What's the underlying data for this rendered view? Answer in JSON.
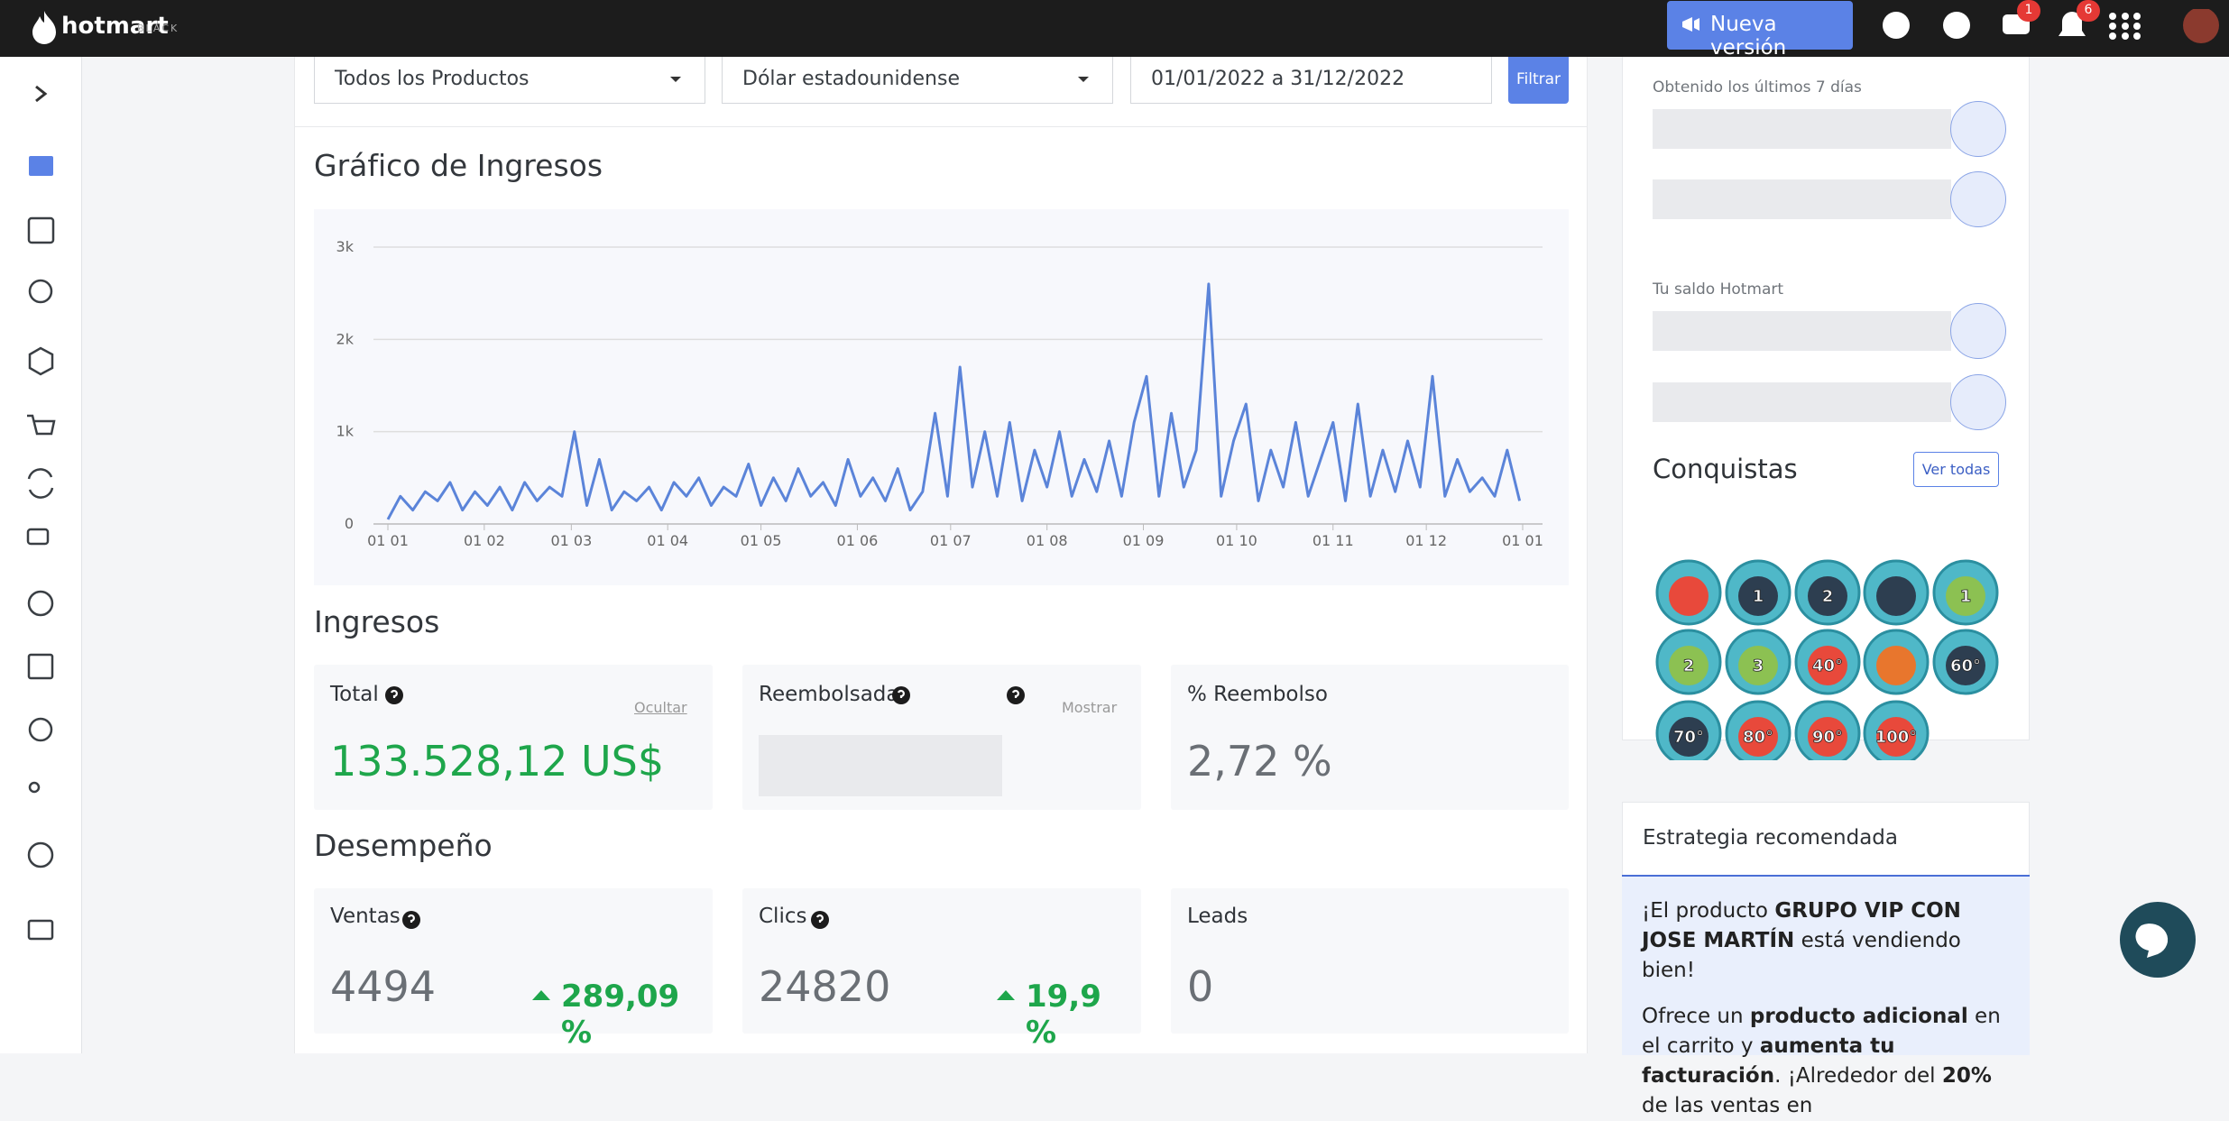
{
  "topbar": {
    "brand": "hotmart",
    "brand_tag": "BLACK",
    "new_version": "Nueva versión",
    "chat_badge": "1",
    "notif_badge": "6"
  },
  "filters": {
    "product": "Todos los Productos",
    "currency": "Dólar estadounidense",
    "dates": "01/01/2022 a 31/12/2022",
    "button": "Filtrar"
  },
  "chart_data": {
    "type": "line",
    "title": "Gráfico de Ingresos",
    "color": "#5b84d9",
    "grid": true,
    "xlim": [
      0,
      365
    ],
    "xticks": [
      {
        "value": 0,
        "label": "01 01"
      },
      {
        "value": 31,
        "label": "01 02"
      },
      {
        "value": 59,
        "label": "01 03"
      },
      {
        "value": 90,
        "label": "01 04"
      },
      {
        "value": 120,
        "label": "01 05"
      },
      {
        "value": 151,
        "label": "01 06"
      },
      {
        "value": 181,
        "label": "01 07"
      },
      {
        "value": 212,
        "label": "01 08"
      },
      {
        "value": 243,
        "label": "01 09"
      },
      {
        "value": 273,
        "label": "01 10"
      },
      {
        "value": 304,
        "label": "01 11"
      },
      {
        "value": 334,
        "label": "01 12"
      },
      {
        "value": 365,
        "label": "01 01"
      }
    ],
    "ylim": [
      0,
      3000
    ],
    "yticks": [
      0,
      {
        "value": 1000,
        "label": "1k"
      },
      {
        "value": 2000,
        "label": "2k"
      },
      {
        "value": 3000,
        "label": "3k"
      }
    ],
    "x": [
      0,
      4,
      8,
      12,
      16,
      20,
      24,
      28,
      32,
      36,
      40,
      44,
      48,
      52,
      56,
      60,
      64,
      68,
      72,
      76,
      80,
      84,
      88,
      92,
      96,
      100,
      104,
      108,
      112,
      116,
      120,
      124,
      128,
      132,
      136,
      140,
      144,
      148,
      152,
      156,
      160,
      164,
      168,
      172,
      176,
      180,
      184,
      188,
      192,
      196,
      200,
      204,
      208,
      212,
      216,
      220,
      224,
      228,
      232,
      236,
      240,
      244,
      248,
      252,
      256,
      260,
      264,
      268,
      272,
      276,
      280,
      284,
      288,
      292,
      296,
      300,
      304,
      308,
      312,
      316,
      320,
      324,
      328,
      332,
      336,
      340,
      344,
      348,
      352,
      356,
      360,
      364
    ],
    "values": [
      50,
      300,
      150,
      350,
      250,
      450,
      150,
      350,
      200,
      400,
      150,
      450,
      250,
      400,
      300,
      1000,
      200,
      700,
      150,
      350,
      250,
      400,
      150,
      450,
      300,
      500,
      200,
      400,
      300,
      650,
      200,
      500,
      250,
      600,
      300,
      450,
      200,
      700,
      300,
      500,
      250,
      600,
      150,
      350,
      1200,
      300,
      1700,
      400,
      1000,
      300,
      1100,
      250,
      800,
      400,
      1000,
      300,
      700,
      350,
      900,
      300,
      1100,
      1600,
      300,
      1200,
      400,
      800,
      2600,
      300,
      900,
      1300,
      250,
      800,
      400,
      1100,
      300,
      700,
      1100,
      250,
      1300,
      300,
      800,
      350,
      900,
      400,
      1600,
      300,
      700,
      350,
      500,
      300,
      800,
      250
    ]
  },
  "ingresos": {
    "title": "Ingresos",
    "cards": [
      {
        "label": "Total",
        "action": "Ocultar",
        "value": "133.528,12 US$"
      },
      {
        "label": "Reembolsada",
        "action": "Mostrar"
      },
      {
        "label": "% Reembolso",
        "value": "2,72 %"
      }
    ]
  },
  "desempeno": {
    "title": "Desempeño",
    "cards": [
      {
        "label": "Ventas",
        "value": "4494",
        "change": "289,09 %"
      },
      {
        "label": "Clics",
        "value": "24820",
        "change": "19,9 %"
      },
      {
        "label": "Leads",
        "value": "0"
      }
    ]
  },
  "side": {
    "last7": "Obtenido los últimos 7 días",
    "balance": "Tu saldo Hotmart",
    "conquests": {
      "title": "Conquistas",
      "see_all": "Ver todas",
      "badges": [
        "1",
        "2",
        "1",
        "2",
        "3",
        "40°",
        "60°",
        "70°",
        "80°",
        "90°",
        "100°"
      ]
    },
    "strategy": {
      "title": "Estrategia recomendada",
      "p1": [
        "¡El producto ",
        {
          "text": "GRUPO VIP CON JOSE MARTÍN",
          "bold": true
        },
        " está vendiendo bien!"
      ],
      "p2": [
        "Ofrece un ",
        {
          "text": "producto adicional",
          "bold": true
        },
        " en el carrito y ",
        {
          "text": "aumenta tu facturación",
          "bold": true
        },
        ". ¡Alrededor del ",
        {
          "text": "20%",
          "bold": true
        },
        " de las ventas en"
      ]
    }
  }
}
